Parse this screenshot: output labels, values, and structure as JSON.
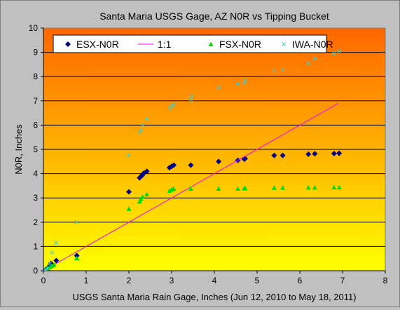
{
  "chart_data": {
    "type": "scatter",
    "title": "Santa Maria USGS Gage, AZ N0R  vs Tipping Bucket",
    "xlabel": "USGS Santa Maria Rain Gage, Inches (Jun 12, 2010 to May 18, 2011)",
    "ylabel": "N0R, Inches",
    "xlim": [
      0,
      8
    ],
    "ylim": [
      0,
      10
    ],
    "x_ticks": [
      "0",
      "1",
      "2",
      "3",
      "4",
      "5",
      "6",
      "7",
      "8"
    ],
    "y_ticks": [
      "0",
      "1",
      "2",
      "3",
      "4",
      "5",
      "6",
      "7",
      "8",
      "9",
      "10"
    ],
    "grid": true,
    "legend_position": "top",
    "series": [
      {
        "name": "ESX-N0R",
        "marker": "diamond",
        "color": "#000080",
        "points": [
          [
            0.05,
            0.05
          ],
          [
            0.08,
            0.08
          ],
          [
            0.12,
            0.12
          ],
          [
            0.15,
            0.22
          ],
          [
            0.18,
            0.3
          ],
          [
            0.3,
            0.42
          ],
          [
            0.78,
            0.62
          ],
          [
            2.0,
            3.25
          ],
          [
            2.25,
            3.83
          ],
          [
            2.28,
            3.88
          ],
          [
            2.32,
            3.95
          ],
          [
            2.35,
            4.02
          ],
          [
            2.42,
            4.1
          ],
          [
            2.95,
            4.25
          ],
          [
            3.0,
            4.3
          ],
          [
            3.05,
            4.35
          ],
          [
            3.45,
            4.35
          ],
          [
            4.1,
            4.5
          ],
          [
            4.55,
            4.55
          ],
          [
            4.7,
            4.6
          ],
          [
            4.72,
            4.62
          ],
          [
            5.4,
            4.75
          ],
          [
            5.6,
            4.75
          ],
          [
            6.2,
            4.8
          ],
          [
            6.35,
            4.82
          ],
          [
            6.8,
            4.83
          ],
          [
            6.92,
            4.84
          ]
        ]
      },
      {
        "name": "1:1",
        "kind": "line",
        "color": "#ff00ff",
        "points": [
          [
            0,
            0
          ],
          [
            6.9,
            6.9
          ]
        ]
      },
      {
        "name": "FSX-N0R",
        "marker": "triangle",
        "color": "#00dd00",
        "points": [
          [
            0.05,
            0.05
          ],
          [
            0.1,
            0.1
          ],
          [
            0.15,
            0.15
          ],
          [
            0.2,
            0.2
          ],
          [
            0.25,
            0.25
          ],
          [
            0.78,
            0.52
          ],
          [
            2.0,
            2.55
          ],
          [
            2.25,
            2.85
          ],
          [
            2.28,
            2.95
          ],
          [
            2.32,
            3.05
          ],
          [
            2.42,
            3.15
          ],
          [
            2.95,
            3.3
          ],
          [
            3.0,
            3.35
          ],
          [
            3.05,
            3.38
          ],
          [
            3.45,
            3.38
          ],
          [
            4.1,
            3.38
          ],
          [
            4.55,
            3.38
          ],
          [
            4.7,
            3.4
          ],
          [
            4.72,
            3.4
          ],
          [
            5.4,
            3.42
          ],
          [
            5.6,
            3.42
          ],
          [
            6.2,
            3.43
          ],
          [
            6.35,
            3.43
          ],
          [
            6.8,
            3.44
          ],
          [
            6.92,
            3.44
          ]
        ]
      },
      {
        "name": "IWA-N0R",
        "marker": "x",
        "color": "#44cccc",
        "points": [
          [
            0.05,
            0.05
          ],
          [
            0.1,
            0.1
          ],
          [
            0.15,
            0.3
          ],
          [
            0.2,
            0.75
          ],
          [
            0.3,
            1.15
          ],
          [
            0.78,
            2.0
          ],
          [
            2.0,
            4.75
          ],
          [
            2.25,
            5.7
          ],
          [
            2.28,
            5.8
          ],
          [
            2.32,
            6.0
          ],
          [
            2.42,
            6.25
          ],
          [
            2.95,
            6.7
          ],
          [
            3.0,
            6.8
          ],
          [
            3.05,
            6.85
          ],
          [
            3.45,
            7.05
          ],
          [
            3.47,
            7.2
          ],
          [
            4.1,
            7.55
          ],
          [
            4.55,
            7.7
          ],
          [
            4.7,
            7.75
          ],
          [
            4.72,
            7.85
          ],
          [
            5.4,
            8.25
          ],
          [
            5.6,
            8.3
          ],
          [
            6.2,
            8.55
          ],
          [
            6.35,
            8.75
          ],
          [
            6.8,
            8.95
          ],
          [
            6.92,
            9.05
          ]
        ]
      }
    ]
  }
}
